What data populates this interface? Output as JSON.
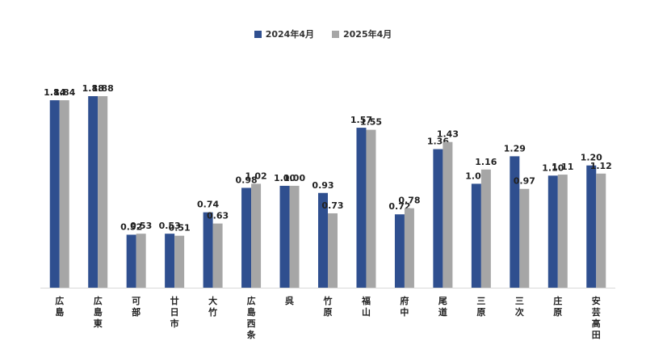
{
  "legend": {
    "series1_label": "2024年4月",
    "series2_label": "2025年4月"
  },
  "colors": {
    "series1": "#2f4f8f",
    "series2": "#a6a6a6",
    "axis": "#d9d9d9"
  },
  "chart_data": {
    "type": "bar",
    "categories": [
      "広島",
      "広島東",
      "可部",
      "廿日市",
      "大竹",
      "広島西条",
      "呉",
      "竹原",
      "福山",
      "府中",
      "尾道",
      "三原",
      "三次",
      "庄原",
      "安芸高田"
    ],
    "series": [
      {
        "name": "2024年4月",
        "values": [
          1.84,
          1.88,
          0.52,
          0.53,
          0.74,
          0.98,
          1.0,
          0.93,
          1.57,
          0.72,
          1.36,
          1.02,
          1.29,
          1.1,
          1.2
        ]
      },
      {
        "name": "2025年4月",
        "values": [
          1.84,
          1.88,
          0.53,
          0.51,
          0.63,
          1.02,
          1.0,
          0.73,
          1.55,
          0.78,
          1.43,
          1.16,
          0.97,
          1.11,
          1.12
        ]
      }
    ],
    "value_labels": [
      [
        "1.84",
        "1.88",
        "0.52",
        "0.53",
        "0.74",
        "0.98",
        "1.00",
        "0.93",
        "1.57",
        "0.72",
        "1.36",
        "1.02",
        "1.29",
        "1.10",
        "1.20"
      ],
      [
        "1.84",
        "1.88",
        "0.53",
        "0.51",
        "0.63",
        "1.02",
        "1.00",
        "0.73",
        "1.55",
        "0.78",
        "1.43",
        "1.16",
        "0.97",
        "1.11",
        "1.12"
      ]
    ],
    "ylim": [
      0,
      1.88
    ],
    "legend_position": "top-center",
    "grid": false
  }
}
